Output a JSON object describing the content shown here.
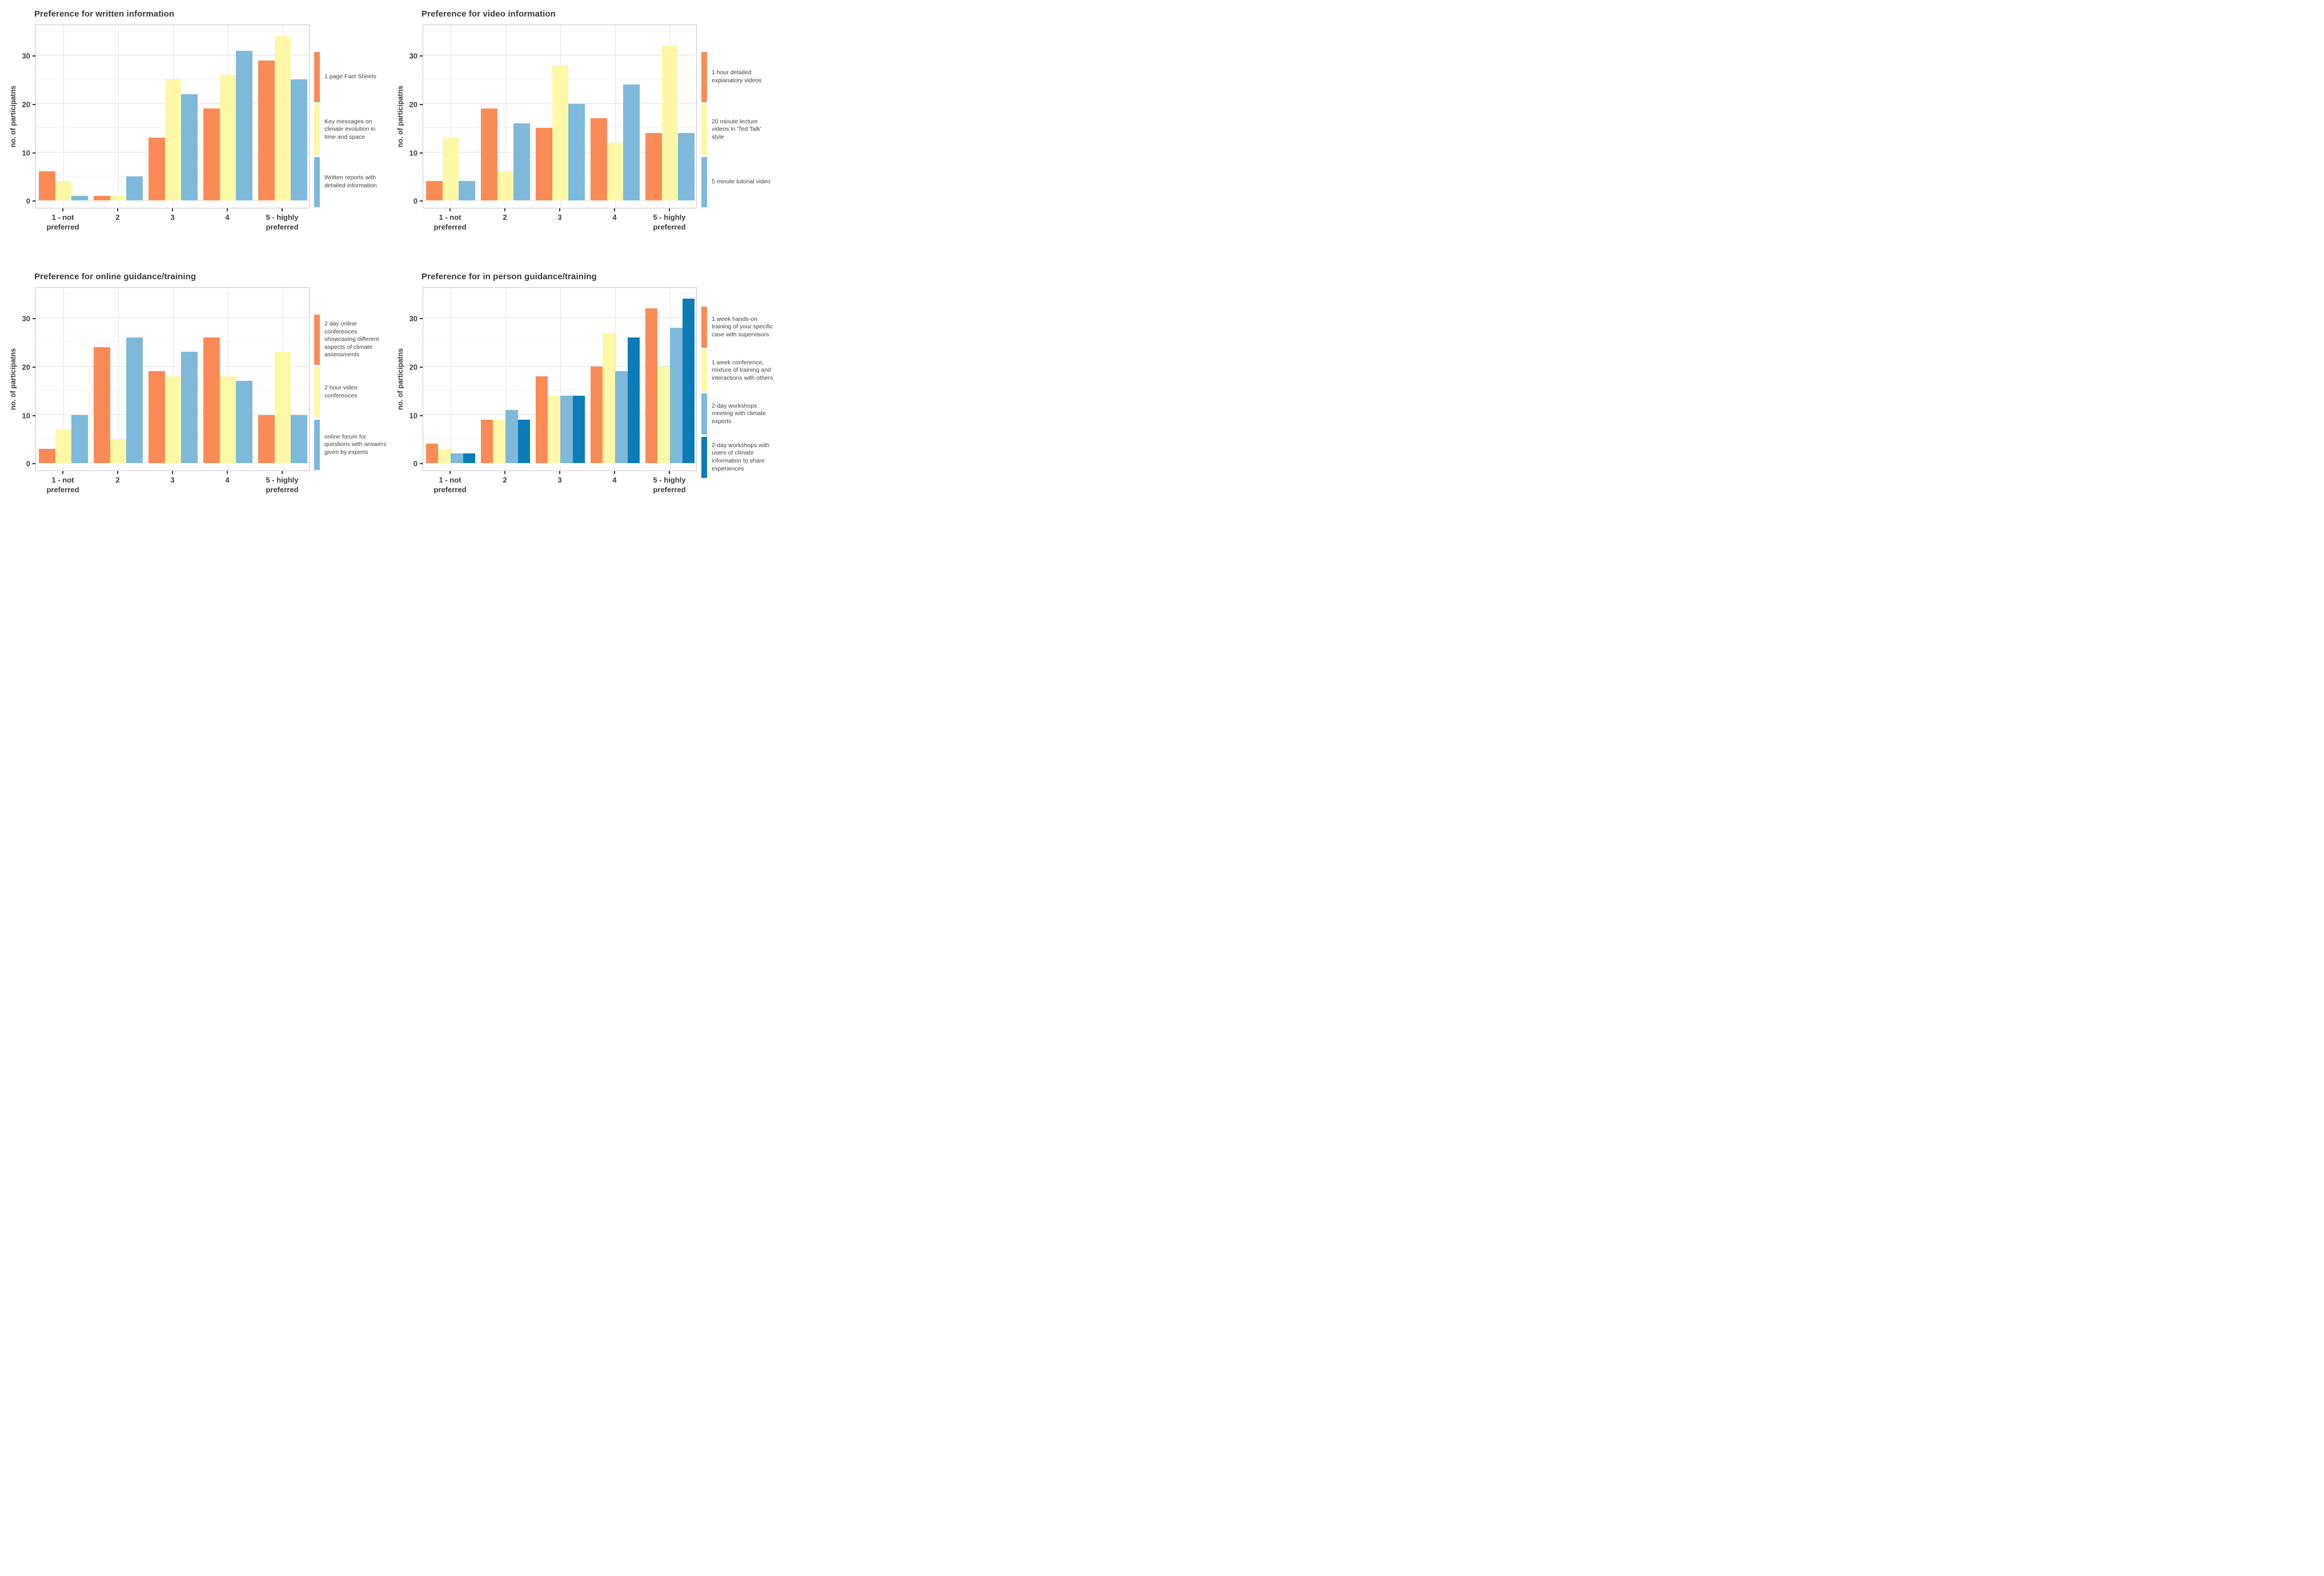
{
  "page": {
    "background": "#ffffff"
  },
  "colors": {
    "orange": "#FA8B57",
    "pale_yellow": "#FDF8A7",
    "light_blue": "#7EB9DB",
    "dark_blue": "#0C7CB9",
    "grid_major": "#DEDEDE",
    "grid_minor": "#EFEFEF",
    "panel_border": "#C6C6C6",
    "text": "#3C3C3C"
  },
  "axis": {
    "y_title": "no. of participatns",
    "y_ticks": [
      0,
      10,
      20,
      30
    ],
    "x_ticks": [
      [
        "1 - not",
        "preferred"
      ],
      [
        "2"
      ],
      [
        "3"
      ],
      [
        "4"
      ],
      [
        "5 - highly",
        "preferred"
      ]
    ]
  },
  "chart_data": [
    {
      "type": "bar",
      "title": "Preference for written information",
      "categories": [
        "1 - not preferred",
        "2",
        "3",
        "4",
        "5 - highly preferred"
      ],
      "xlabel": "",
      "ylabel": "no. of participatns",
      "ylim": [
        0,
        36.5
      ],
      "y_ticks": [
        0,
        10,
        20,
        30
      ],
      "grid": true,
      "legend_position": "right",
      "series": [
        {
          "name": "1 page Fact Sheets",
          "color": "#FA8B57",
          "values": [
            6,
            1,
            13,
            19,
            29
          ]
        },
        {
          "name": "Key messages on climate evolution in time and space",
          "color": "#FDF8A7",
          "values": [
            4,
            1,
            25,
            26,
            34
          ]
        },
        {
          "name": "Written reports with detailed information",
          "color": "#7EB9DB",
          "values": [
            1,
            5,
            22,
            31,
            25
          ]
        }
      ]
    },
    {
      "type": "bar",
      "title": "Preference for video information",
      "categories": [
        "1 - not preferred",
        "2",
        "3",
        "4",
        "5 - highly preferred"
      ],
      "xlabel": "",
      "ylabel": "no. of participatns",
      "ylim": [
        0,
        36.5
      ],
      "y_ticks": [
        0,
        10,
        20,
        30
      ],
      "grid": true,
      "legend_position": "right",
      "series": [
        {
          "name": "1 hour detailed explanatory videos",
          "color": "#FA8B57",
          "values": [
            4,
            19,
            15,
            17,
            14
          ]
        },
        {
          "name": "20 minute lecture videos in 'Ted Talk' style",
          "color": "#FDF8A7",
          "values": [
            13,
            6,
            28,
            12,
            32
          ]
        },
        {
          "name": "5 minute tutorial video",
          "color": "#7EB9DB",
          "values": [
            4,
            16,
            20,
            24,
            14
          ]
        }
      ]
    },
    {
      "type": "bar",
      "title": "Preference for online guidance/training",
      "categories": [
        "1 - not preferred",
        "2",
        "3",
        "4",
        "5 - highly preferred"
      ],
      "xlabel": "",
      "ylabel": "no. of participatns",
      "ylim": [
        0,
        36.5
      ],
      "y_ticks": [
        0,
        10,
        20,
        30
      ],
      "grid": true,
      "legend_position": "right",
      "series": [
        {
          "name": "2 day online conferences showcasing different aspects of climate assessments",
          "color": "#FA8B57",
          "values": [
            3,
            24,
            19,
            26,
            10
          ]
        },
        {
          "name": "2 hour video conferences",
          "color": "#FDF8A7",
          "values": [
            7,
            5,
            18,
            18,
            23
          ]
        },
        {
          "name": "online forum for questions with answers given by experts",
          "color": "#7EB9DB",
          "values": [
            10,
            26,
            23,
            17,
            10
          ]
        }
      ]
    },
    {
      "type": "bar",
      "title": "Preference for in person guidance/training",
      "categories": [
        "1 - not preferred",
        "2",
        "3",
        "4",
        "5 - highly preferred"
      ],
      "xlabel": "",
      "ylabel": "no. of participatns",
      "ylim": [
        0,
        36.5
      ],
      "y_ticks": [
        0,
        10,
        20,
        30
      ],
      "grid": true,
      "legend_position": "right",
      "series": [
        {
          "name": "1 week hands-on training of your specific case with supervisors",
          "color": "#FA8B57",
          "values": [
            4,
            9,
            18,
            20,
            32
          ]
        },
        {
          "name": "1 week conference, mixture of training and interactions with others",
          "color": "#FDF8A7",
          "values": [
            3,
            9,
            14,
            27,
            20
          ]
        },
        {
          "name": "2-day workshops meeting with climate experts",
          "color": "#7EB9DB",
          "values": [
            2,
            11,
            14,
            19,
            28
          ]
        },
        {
          "name": "2-day workshops with users of climate information to share experiences",
          "color": "#0C7CB9",
          "values": [
            2,
            9,
            14,
            26,
            34
          ]
        }
      ]
    }
  ]
}
